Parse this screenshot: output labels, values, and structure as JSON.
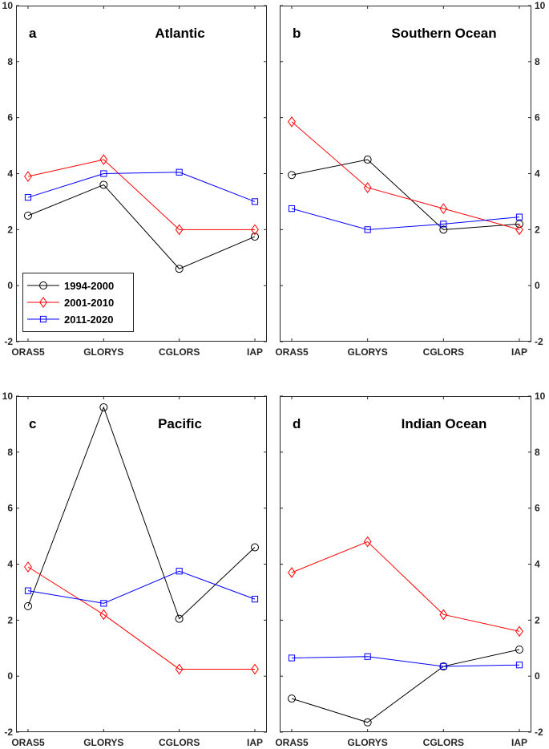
{
  "colors": {
    "s1994": "#000000",
    "s2001": "#ff0000",
    "s2011": "#0000ff",
    "axis": "#262626"
  },
  "chart_data": {
    "type": "line",
    "categories": [
      "ORAS5",
      "GLORYS",
      "CGLORS",
      "IAP"
    ],
    "ylim": [
      -2,
      10
    ],
    "yticks": [
      "-2",
      "0",
      "2",
      "4",
      "6",
      "8",
      "10"
    ],
    "legend": {
      "placement": "bottom-left of panel a",
      "entries": [
        {
          "name": "1994-2000",
          "marker": "circle"
        },
        {
          "name": "2001-2010",
          "marker": "diamond"
        },
        {
          "name": "2011-2020",
          "marker": "square"
        }
      ]
    },
    "panels": [
      {
        "letter": "a",
        "title": "Atlantic",
        "yaxis": "left",
        "series": [
          {
            "name": "1994-2000",
            "values": [
              2.5,
              3.6,
              0.6,
              1.75
            ]
          },
          {
            "name": "2001-2010",
            "values": [
              3.9,
              4.5,
              2.0,
              2.0
            ]
          },
          {
            "name": "2011-2020",
            "values": [
              3.15,
              4.0,
              4.05,
              3.0
            ]
          }
        ]
      },
      {
        "letter": "b",
        "title": "Southern Ocean",
        "yaxis": "right",
        "series": [
          {
            "name": "1994-2000",
            "values": [
              3.95,
              4.5,
              2.0,
              2.2
            ]
          },
          {
            "name": "2001-2010",
            "values": [
              5.85,
              3.5,
              2.75,
              2.0
            ]
          },
          {
            "name": "2011-2020",
            "values": [
              2.75,
              2.0,
              2.2,
              2.45
            ]
          }
        ]
      },
      {
        "letter": "c",
        "title": "Pacific",
        "yaxis": "left",
        "series": [
          {
            "name": "1994-2000",
            "values": [
              2.5,
              9.6,
              2.05,
              4.6
            ]
          },
          {
            "name": "2001-2010",
            "values": [
              3.9,
              2.2,
              0.25,
              0.25
            ]
          },
          {
            "name": "2011-2020",
            "values": [
              3.05,
              2.6,
              3.75,
              2.75
            ]
          }
        ]
      },
      {
        "letter": "d",
        "title": "Indian Ocean",
        "yaxis": "right",
        "series": [
          {
            "name": "1994-2000",
            "values": [
              -0.8,
              -1.65,
              0.35,
              0.95
            ]
          },
          {
            "name": "2001-2010",
            "values": [
              3.7,
              4.8,
              2.2,
              1.6
            ]
          },
          {
            "name": "2011-2020",
            "values": [
              0.65,
              0.7,
              0.35,
              0.4
            ]
          }
        ]
      }
    ]
  }
}
